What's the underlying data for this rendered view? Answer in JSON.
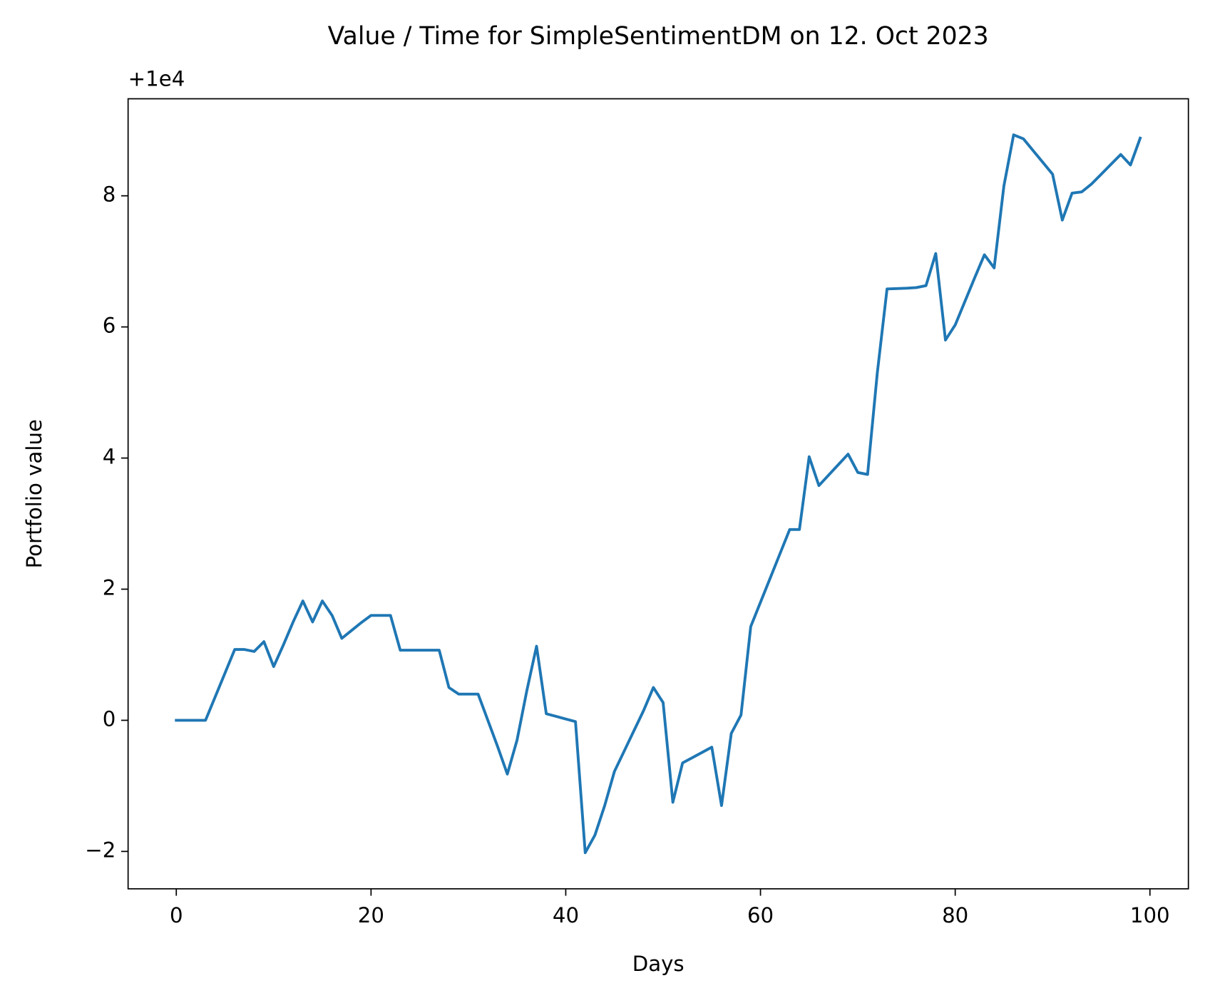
{
  "chart_data": {
    "type": "line",
    "title": "Value / Time for SimpleSentimentDM on 12. Oct 2023",
    "x_label": "Days",
    "y_label": "Portfolio value",
    "y_offset_text": "+1e4",
    "xlim": [
      -4.95,
      103.95
    ],
    "ylim": [
      -2.57,
      9.48
    ],
    "xticks": [
      0,
      20,
      40,
      60,
      80,
      100
    ],
    "yticks": [
      {
        "value": -2,
        "label": "−2"
      },
      0,
      2,
      4,
      6,
      8
    ],
    "grid": false,
    "x": [
      0,
      1,
      2,
      3,
      4,
      5,
      6,
      7,
      8,
      9,
      10,
      11,
      12,
      13,
      14,
      15,
      16,
      17,
      18,
      19,
      20,
      21,
      22,
      23,
      24,
      25,
      26,
      27,
      28,
      29,
      30,
      31,
      32,
      33,
      34,
      35,
      36,
      37,
      38,
      39,
      40,
      41,
      42,
      43,
      44,
      45,
      46,
      47,
      48,
      49,
      50,
      51,
      52,
      53,
      54,
      55,
      56,
      57,
      58,
      59,
      60,
      61,
      62,
      63,
      64,
      65,
      66,
      67,
      68,
      69,
      70,
      71,
      72,
      73,
      74,
      75,
      76,
      77,
      78,
      79,
      80,
      81,
      82,
      83,
      84,
      85,
      86,
      87,
      88,
      89,
      90,
      91,
      92,
      93,
      94,
      95,
      96,
      97,
      98,
      99
    ],
    "series": [
      {
        "name": "Portfolio value",
        "color": "#1f77b4",
        "values": [
          0,
          0,
          0,
          0,
          0.36,
          0.72,
          1.08,
          1.08,
          1.05,
          1.2,
          0.82,
          1.15,
          1.5,
          1.82,
          1.5,
          1.82,
          1.6,
          1.25,
          1.37,
          1.49,
          1.6,
          1.6,
          1.6,
          1.07,
          1.07,
          1.07,
          1.07,
          1.07,
          0.5,
          0.4,
          0.4,
          0.4,
          0.0,
          -0.4,
          -0.82,
          -0.3,
          0.45,
          1.13,
          0.1,
          0.06,
          0.02,
          -0.02,
          -2.02,
          -1.75,
          -1.3,
          -0.78,
          -0.47,
          -0.16,
          0.15,
          0.5,
          0.27,
          -1.25,
          -0.65,
          -0.57,
          -0.49,
          -0.41,
          -1.3,
          -0.2,
          0.08,
          1.43,
          1.8,
          2.17,
          2.54,
          2.91,
          2.91,
          4.02,
          3.58,
          3.74,
          3.9,
          4.06,
          3.78,
          3.75,
          5.3,
          6.58,
          6.585,
          6.59,
          6.6,
          6.63,
          7.12,
          5.8,
          6.03,
          6.39,
          6.75,
          7.1,
          6.9,
          8.15,
          8.93,
          8.87,
          8.69,
          8.51,
          8.33,
          7.63,
          8.04,
          8.06,
          8.18,
          8.33,
          8.48,
          8.63,
          8.47,
          8.88
        ]
      }
    ]
  }
}
